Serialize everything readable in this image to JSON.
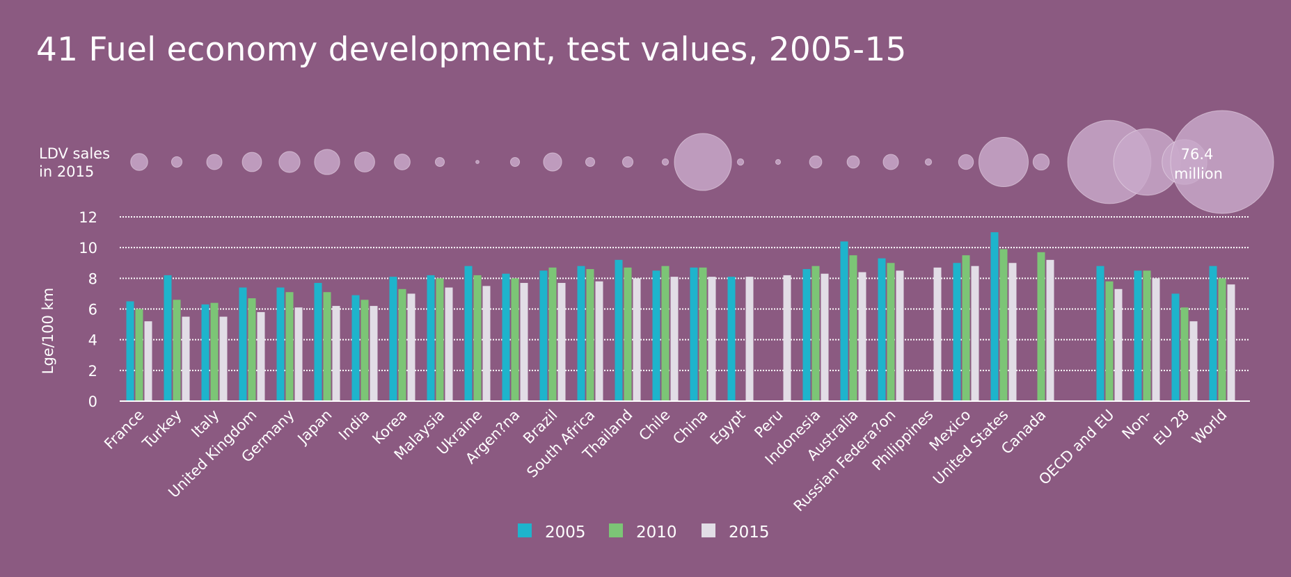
{
  "colors": {
    "background": "#8b5a81",
    "s2005": "#1eb4cc",
    "s2010": "#7cc576",
    "s2015": "#e2dde6",
    "bubble": "#c9aacb"
  },
  "chart_data": {
    "type": "bar",
    "title": "41 Fuel economy development, test values, 2005-15",
    "ylabel": "Lge/100 km",
    "ylim": [
      0,
      12
    ],
    "yticks": [
      0,
      2,
      4,
      6,
      8,
      10,
      12
    ],
    "grid": "horizontal dotted",
    "legend_position": "bottom",
    "categories": [
      "France",
      "Turkey",
      "Italy",
      "United Kingdom",
      "Germany",
      "Japan",
      "India",
      "Korea",
      "Malaysia",
      "Ukraine",
      "Argen?na",
      "Brazil",
      "South Africa",
      "Thailand",
      "Chile",
      "China",
      "Egypt",
      "Peru",
      "Indonesia",
      "Australia",
      "Russian Federa?on",
      "Philippines",
      "Mexico",
      "United States",
      "Canada",
      "OECD and EU",
      "Non-",
      "EU 28",
      "World"
    ],
    "series": [
      {
        "name": "2005",
        "values": [
          6.5,
          8.2,
          6.3,
          7.4,
          7.4,
          7.7,
          6.9,
          8.1,
          8.2,
          8.8,
          8.3,
          8.5,
          8.8,
          9.2,
          8.5,
          8.7,
          8.1,
          null,
          8.6,
          10.4,
          9.3,
          null,
          9.0,
          11.0,
          null,
          8.8,
          8.5,
          7.0,
          8.8
        ]
      },
      {
        "name": "2010",
        "values": [
          6.0,
          6.6,
          6.4,
          6.7,
          7.1,
          7.1,
          6.6,
          7.3,
          8.0,
          8.2,
          8.0,
          8.7,
          8.6,
          8.7,
          8.8,
          8.7,
          null,
          null,
          8.8,
          9.5,
          9.0,
          null,
          9.5,
          9.9,
          9.7,
          7.8,
          8.5,
          6.1,
          8.0
        ]
      },
      {
        "name": "2015",
        "values": [
          5.2,
          5.5,
          5.5,
          5.8,
          6.1,
          6.2,
          6.2,
          7.0,
          7.4,
          7.5,
          7.7,
          7.7,
          7.8,
          8.0,
          8.1,
          8.1,
          8.1,
          8.2,
          8.3,
          8.4,
          8.5,
          8.7,
          8.8,
          9.0,
          9.2,
          7.3,
          8.0,
          5.2,
          7.6
        ]
      }
    ],
    "ldv_sales": {
      "label": [
        "LDV sales",
        "in 2015"
      ],
      "values": [
        2.1,
        0.8,
        1.7,
        2.7,
        3.2,
        4.6,
        2.9,
        1.8,
        0.6,
        0.08,
        0.6,
        2.4,
        0.6,
        0.8,
        0.3,
        23.5,
        0.3,
        0.18,
        1.1,
        1.1,
        1.7,
        0.3,
        1.6,
        17.6,
        1.9,
        50.0,
        32.0,
        14.5,
        76.4
      ],
      "max_label": [
        "76.4",
        "million"
      ]
    }
  }
}
